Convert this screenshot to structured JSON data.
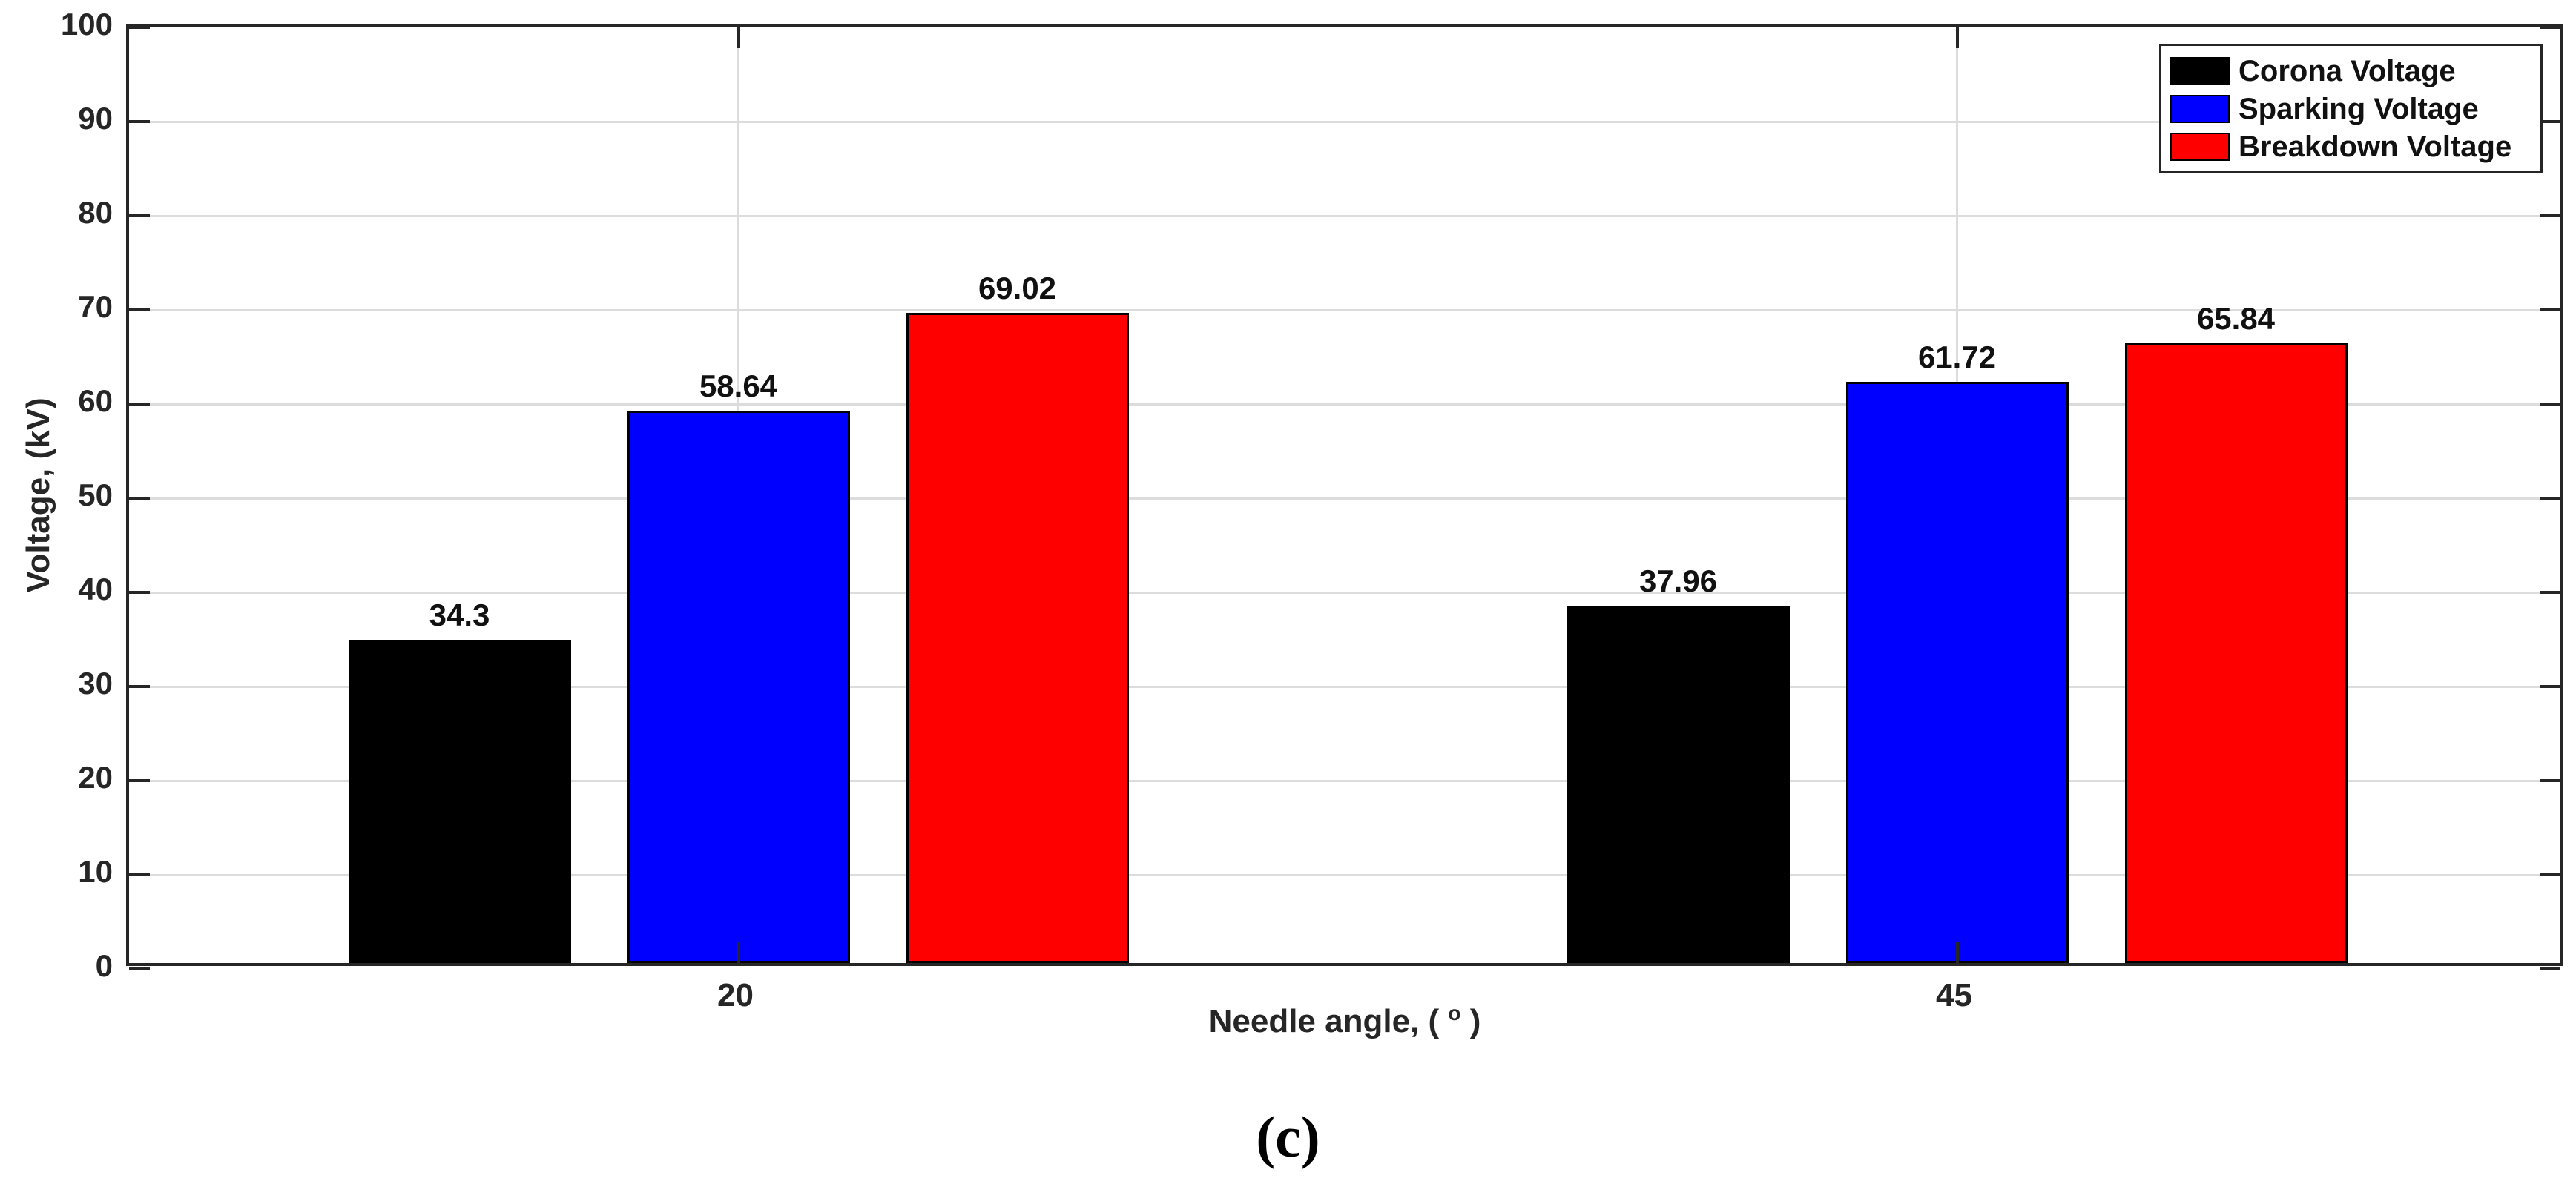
{
  "figure": {
    "caption": "(c)"
  },
  "chart_data": {
    "type": "bar",
    "title": "",
    "ylabel": "Voltage, (kV)",
    "xlabel_parts": [
      "Needle angle, ( ",
      "o",
      " )"
    ],
    "categories": [
      "20",
      "45"
    ],
    "series": [
      {
        "name": "Corona Voltage",
        "color": "#000000",
        "values": [
          34.3,
          37.96
        ],
        "labels": [
          "34.3",
          "37.96"
        ]
      },
      {
        "name": "Sparking Voltage",
        "color": "#0000FF",
        "values": [
          58.64,
          61.72
        ],
        "labels": [
          "58.64",
          "61.72"
        ]
      },
      {
        "name": "Breakdown Voltage",
        "color": "#FF0000",
        "values": [
          69.02,
          65.84
        ],
        "labels": [
          "69.02",
          "65.84"
        ]
      }
    ],
    "ylim": [
      0,
      100
    ],
    "ytick_step": 10,
    "yticks": [
      "0",
      "10",
      "20",
      "30",
      "40",
      "50",
      "60",
      "70",
      "80",
      "90",
      "100"
    ],
    "grid": true,
    "legend_position": "top-right",
    "colors": {
      "grid": "#DCDCDC",
      "axis": "#262626",
      "bar_edge": "#000000",
      "text": "#262626",
      "background": "#FFFFFF"
    }
  }
}
